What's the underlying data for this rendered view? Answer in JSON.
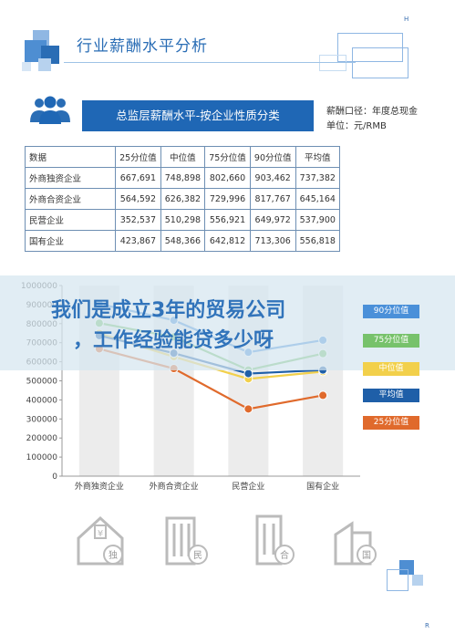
{
  "header": {
    "title": "行业薪酬水平分析"
  },
  "banner": {
    "text": "总监层薪酬水平-按企业性质分类",
    "meta_line1": "薪酬口径：年度总现金",
    "meta_line2": "单位：元/RMB"
  },
  "table": {
    "headers": [
      "数据",
      "25分位值",
      "中位值",
      "75分位值",
      "90分位值",
      "平均值"
    ],
    "rows": [
      [
        "外商独资企业",
        "667,691",
        "748,898",
        "802,660",
        "903,462",
        "737,382"
      ],
      [
        "外商合资企业",
        "564,592",
        "626,382",
        "729,996",
        "817,767",
        "645,164"
      ],
      [
        "民营企业",
        "352,537",
        "510,298",
        "556,921",
        "649,972",
        "537,900"
      ],
      [
        "国有企业",
        "423,867",
        "548,366",
        "642,812",
        "713,306",
        "556,818"
      ]
    ]
  },
  "watermark": {
    "line1": "我们是成立3年的贸易公司",
    "line2": "，工作经验能贷多少呀"
  },
  "corners": {
    "top": "H",
    "bottom": "R"
  },
  "icons": [
    {
      "name": "foreign-owned-building-icon",
      "label": "独"
    },
    {
      "name": "joint-venture-building-icon",
      "label": "民"
    },
    {
      "name": "private-building-icon",
      "label": "合"
    },
    {
      "name": "state-owned-building-icon",
      "label": "国"
    }
  ],
  "colors": {
    "brand_blue": "#1f67b5",
    "p90": "#4a90d9",
    "p75": "#77c26b",
    "p50_median": "#f2d04b",
    "mean": "#1f5fa8",
    "p25": "#e06a2c"
  },
  "chart_data": {
    "type": "line",
    "categories": [
      "外商独资企业",
      "外商合资企业",
      "民营企业",
      "国有企业"
    ],
    "ylim": [
      0,
      1000000
    ],
    "yticks": [
      "0",
      "100000",
      "200000",
      "300000",
      "400000",
      "500000",
      "600000",
      "700000",
      "800000",
      "900000",
      "1000000"
    ],
    "grid": false,
    "legend_position": "right",
    "series": [
      {
        "name": "90分位值",
        "values": [
          903462,
          817767,
          649972,
          713306
        ],
        "color": "#4a90d9"
      },
      {
        "name": "75分位值",
        "values": [
          802660,
          729996,
          556921,
          642812
        ],
        "color": "#77c26b"
      },
      {
        "name": "中位值",
        "values": [
          748898,
          626382,
          510298,
          548366
        ],
        "color": "#f2d04b"
      },
      {
        "name": "平均值",
        "values": [
          737382,
          645164,
          537900,
          556818
        ],
        "color": "#1f5fa8"
      },
      {
        "name": "25分位值",
        "values": [
          667691,
          564592,
          352537,
          423867
        ],
        "color": "#e06a2c"
      }
    ]
  }
}
